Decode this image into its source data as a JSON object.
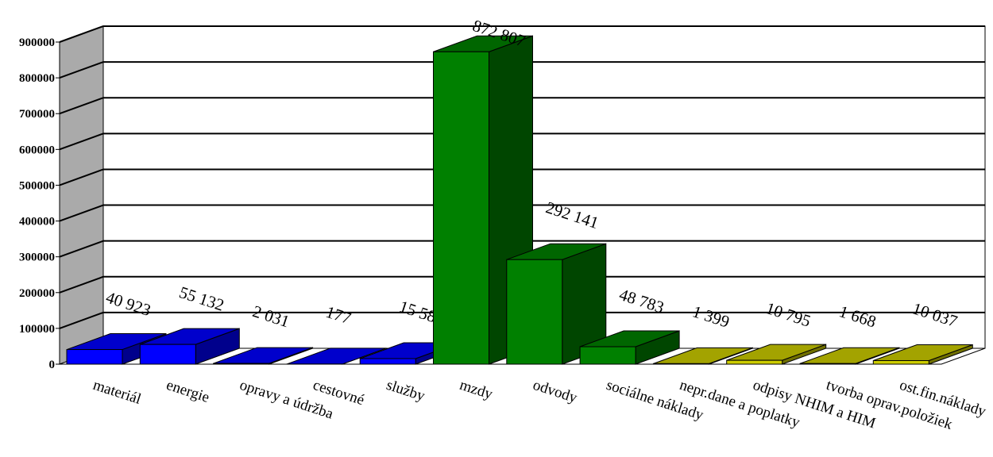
{
  "chart_data": {
    "type": "bar",
    "style": "3d-column",
    "title": "",
    "xlabel": "",
    "ylabel": "",
    "ylim": [
      0,
      900000
    ],
    "yticks": [
      0,
      100000,
      200000,
      300000,
      400000,
      500000,
      600000,
      700000,
      800000,
      900000
    ],
    "grid": true,
    "legend": "none",
    "categories": [
      "materiál",
      "energie",
      "opravy a údržba",
      "cestovné",
      "služby",
      "mzdy",
      "odvody",
      "sociálne náklady",
      "nepr.dane a poplatky",
      "odpisy NHIM a HIM",
      "tvorba oprav.položiek",
      "ost.fin.náklady"
    ],
    "values": [
      40923,
      55132,
      2031,
      177,
      15582,
      872807,
      292141,
      48783,
      1399,
      10795,
      1668,
      10037
    ],
    "data_labels": [
      "40 923",
      "55 132",
      "2 031",
      "177",
      "15 582",
      "872 807",
      "292 141",
      "48 783",
      "1 399",
      "10 795",
      "1 668",
      "10 037"
    ],
    "colors": [
      "#0000ff",
      "#0000ff",
      "#0000ff",
      "#0000ff",
      "#0000ff",
      "#008000",
      "#008000",
      "#008000",
      "#cccc00",
      "#cccc00",
      "#cccc00",
      "#cccc00"
    ],
    "wall_color": "#aaaaaa"
  }
}
